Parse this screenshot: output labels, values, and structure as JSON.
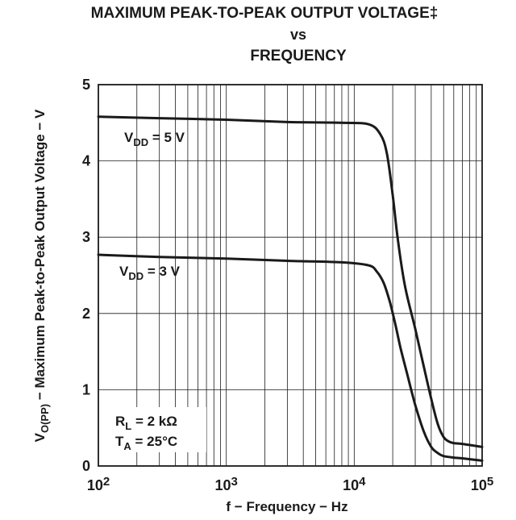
{
  "chart_data": {
    "type": "line",
    "title": [
      "MAXIMUM PEAK-TO-PEAK OUTPUT VOLTAGE‡",
      "vs",
      "FREQUENCY"
    ],
    "xlabel": "f − Frequency − Hz",
    "ylabel": {
      "main": "V",
      "sub": "O(PP)",
      "rest": " − Maximum Peak-to-Peak Output Voltage − V"
    },
    "xscale": "log",
    "xlim": [
      100,
      100000
    ],
    "ylim": [
      0,
      5
    ],
    "grid": true,
    "y_ticks": [
      0,
      1,
      2,
      3,
      4,
      5
    ],
    "x_ticks": [
      {
        "value": 100,
        "base": "10",
        "exp": "2"
      },
      {
        "value": 1000,
        "base": "10",
        "exp": "3"
      },
      {
        "value": 10000,
        "base": "10",
        "exp": "4"
      },
      {
        "value": 100000,
        "base": "10",
        "exp": "5"
      }
    ],
    "series": [
      {
        "name": "VDD = 5 V",
        "label": {
          "main": "V",
          "sub": "DD",
          "rest": " = 5 V"
        },
        "x": [
          100,
          300,
          1000,
          3000,
          8000,
          13000,
          16000,
          18000,
          20000,
          22000,
          25000,
          30000,
          35000,
          40000,
          45000,
          50000,
          55000,
          60000,
          70000,
          100000
        ],
        "y": [
          4.58,
          4.56,
          4.54,
          4.51,
          4.5,
          4.48,
          4.35,
          4.1,
          3.55,
          2.95,
          2.35,
          1.8,
          1.3,
          0.88,
          0.55,
          0.38,
          0.32,
          0.3,
          0.29,
          0.25
        ]
      },
      {
        "name": "VDD = 3 V",
        "label": {
          "main": "V",
          "sub": "DD",
          "rest": " = 3 V"
        },
        "x": [
          100,
          300,
          1000,
          3000,
          8000,
          13000,
          15000,
          17000,
          19000,
          21000,
          23000,
          26000,
          30000,
          35000,
          40000,
          45000,
          50000,
          60000,
          70000,
          100000
        ],
        "y": [
          2.77,
          2.74,
          2.72,
          2.69,
          2.67,
          2.63,
          2.55,
          2.4,
          2.15,
          1.85,
          1.55,
          1.2,
          0.8,
          0.45,
          0.25,
          0.17,
          0.13,
          0.11,
          0.1,
          0.07
        ]
      }
    ],
    "annotations": [
      {
        "main": "R",
        "sub": "L",
        "rest": " = 2 kΩ"
      },
      {
        "main": "T",
        "sub": "A",
        "rest": " = 25°C"
      }
    ]
  }
}
